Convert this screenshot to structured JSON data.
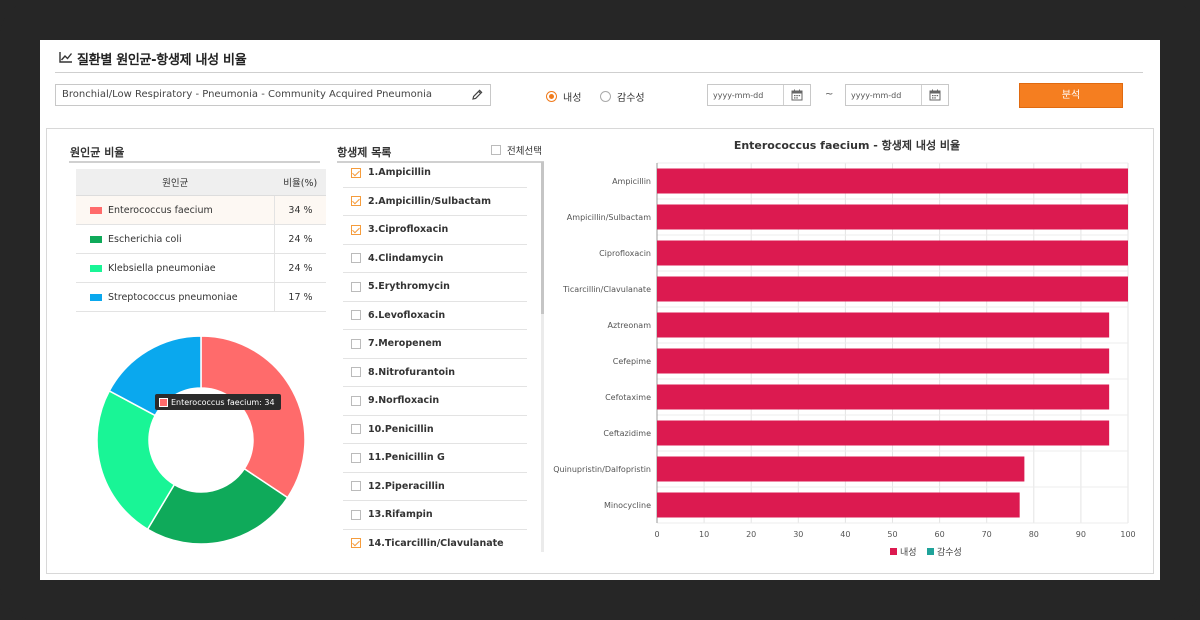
{
  "page": {
    "title": "질환별 원인균-항생제 내성 비율"
  },
  "toolbar": {
    "path_value": "Bronchial/Low Respiratory - Pneumonia - Community Acquired Pneumonia",
    "radio_resistant": "내성",
    "radio_susceptible": "감수성",
    "date_from_placeholder": "yyyy-mm-dd",
    "date_to_placeholder": "yyyy-mm-dd",
    "tilde": "~",
    "analyze_label": "분석"
  },
  "pathogens": {
    "title": "원인균 비율",
    "col_name": "원인균",
    "col_ratio": "비율(%)",
    "rows": [
      {
        "name": "Enterococcus faecium",
        "ratio": "34 %",
        "value": 34,
        "color": "#ff6b6b"
      },
      {
        "name": "Escherichia coli",
        "ratio": "24 %",
        "value": 24,
        "color": "#0faa5a"
      },
      {
        "name": "Klebsiella pneumoniae",
        "ratio": "24 %",
        "value": 24,
        "color": "#19f596"
      },
      {
        "name": "Streptococcus pneumoniae",
        "ratio": "17 %",
        "value": 17,
        "color": "#0aa8ee"
      }
    ],
    "tooltip": "Enterococcus faecium: 34"
  },
  "antibiotics": {
    "title": "항생제 목록",
    "select_all": "전체선택",
    "items": [
      {
        "label": "1.Ampicillin",
        "checked": true
      },
      {
        "label": "2.Ampicillin/Sulbactam",
        "checked": true
      },
      {
        "label": "3.Ciprofloxacin",
        "checked": true
      },
      {
        "label": "4.Clindamycin",
        "checked": false
      },
      {
        "label": "5.Erythromycin",
        "checked": false
      },
      {
        "label": "6.Levofloxacin",
        "checked": false
      },
      {
        "label": "7.Meropenem",
        "checked": false
      },
      {
        "label": "8.Nitrofurantoin",
        "checked": false
      },
      {
        "label": "9.Norfloxacin",
        "checked": false
      },
      {
        "label": "10.Penicillin",
        "checked": false
      },
      {
        "label": "11.Penicillin G",
        "checked": false
      },
      {
        "label": "12.Piperacillin",
        "checked": false
      },
      {
        "label": "13.Rifampin",
        "checked": false
      },
      {
        "label": "14.Ticarcillin/Clavulanate",
        "checked": true
      }
    ]
  },
  "chart_data": {
    "type": "bar",
    "orientation": "horizontal",
    "title": "Enterococcus faecium - 항생제 내성 비율",
    "categories": [
      "Ampicillin",
      "Ampicillin/Sulbactam",
      "Ciprofloxacin",
      "Ticarcillin/Clavulanate",
      "Aztreonam",
      "Cefepime",
      "Cefotaxime",
      "Ceftazidime",
      "Quinupristin/Dalfopristin",
      "Minocycline"
    ],
    "series": [
      {
        "name": "내성",
        "color": "#dc1a50",
        "values": [
          100,
          100,
          100,
          100,
          96,
          96,
          96,
          96,
          78,
          77
        ]
      },
      {
        "name": "감수성",
        "color": "#1fa39a",
        "values": [
          0,
          0,
          0,
          0,
          0,
          0,
          0,
          0,
          0,
          0
        ]
      }
    ],
    "xlim": [
      0,
      100
    ],
    "xticks": [
      0,
      10,
      20,
      30,
      40,
      50,
      60,
      70,
      80,
      90,
      100
    ],
    "grid": true,
    "legend": "bottom"
  }
}
